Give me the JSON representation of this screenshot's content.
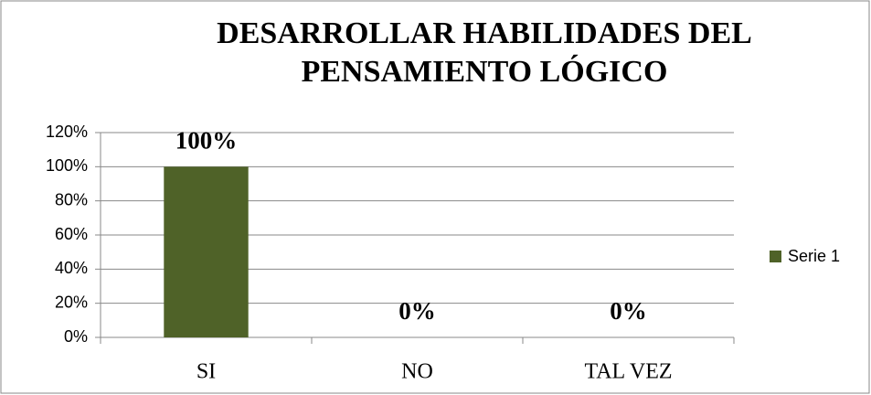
{
  "chart_data": {
    "type": "bar",
    "title": "DESARROLLAR HABILIDADES DEL PENSAMIENTO LÓGICO",
    "categories": [
      "SI",
      "NO",
      "TAL VEZ"
    ],
    "series": [
      {
        "name": "Serie 1",
        "color": "#4f6228",
        "values": [
          100,
          0,
          0
        ],
        "value_labels": [
          "100%",
          "0%",
          "0%"
        ]
      }
    ],
    "ylim": [
      0,
      120
    ],
    "yticks": [
      {
        "value": 0,
        "label": "0%"
      },
      {
        "value": 20,
        "label": "20%"
      },
      {
        "value": 40,
        "label": "40%"
      },
      {
        "value": 60,
        "label": "60%"
      },
      {
        "value": 80,
        "label": "80%"
      },
      {
        "value": 100,
        "label": "100%"
      },
      {
        "value": 120,
        "label": "120%"
      }
    ],
    "grid": true,
    "legend": "right"
  }
}
